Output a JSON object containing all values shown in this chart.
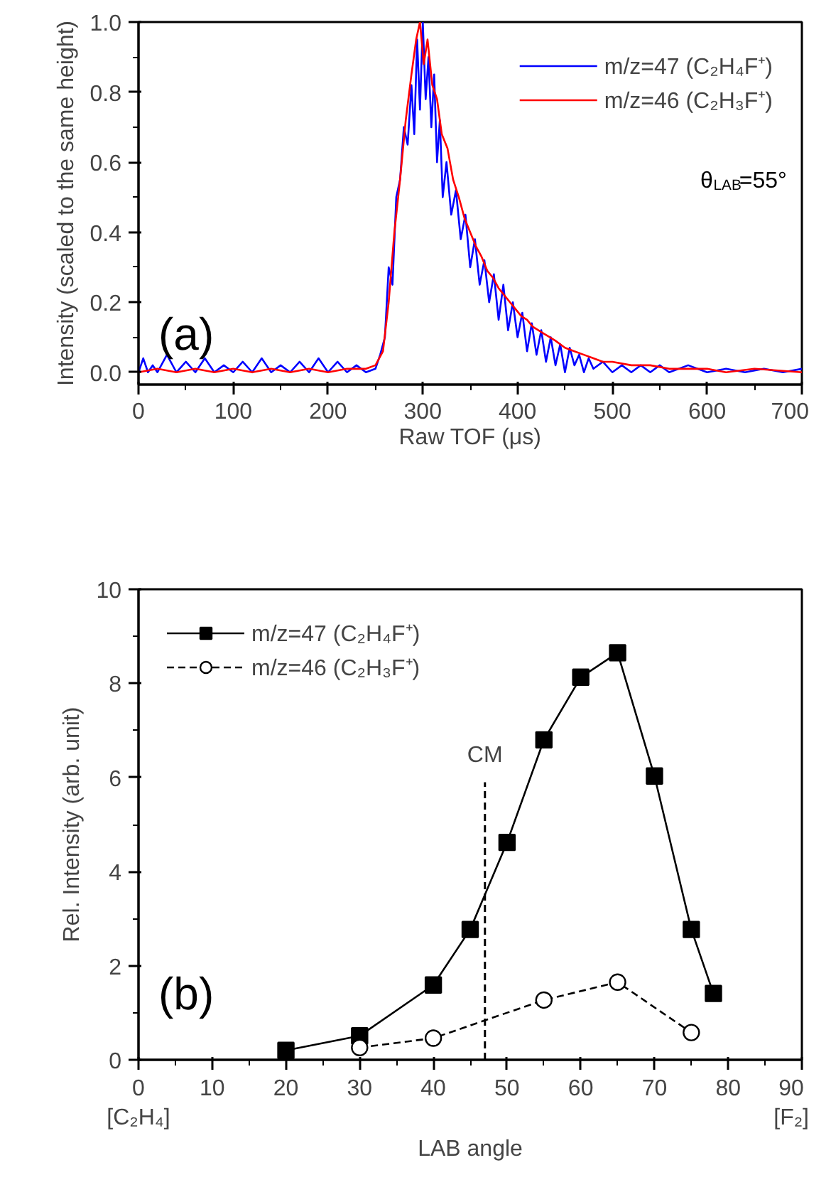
{
  "chart_data": [
    {
      "type": "line",
      "xlabel": "Raw TOF (μs)",
      "ylabel": "Intensity (scaled to the same height)",
      "xlim": [
        0,
        700
      ],
      "ylim": [
        -0.035,
        1.0
      ],
      "xticks": [
        0,
        100,
        200,
        300,
        400,
        500,
        600,
        700
      ],
      "yticks": [
        {
          "value": 0,
          "label": "0.0"
        },
        {
          "value": 0.2,
          "label": "0.2"
        },
        {
          "value": 0.4,
          "label": "0.4"
        },
        {
          "value": 0.6,
          "label": "0.6"
        },
        {
          "value": 0.8,
          "label": "0.8"
        },
        {
          "value": 1.0,
          "label": "1.0"
        }
      ],
      "grid": false,
      "legend": "top right",
      "annotations": [
        "θ$_{LAB}$=55°",
        "(a)"
      ],
      "series": [
        {
          "name": "m/z=47 (C₂H₄F⁺)",
          "color": "#0000ff",
          "x": [
            0,
            5,
            10,
            15,
            20,
            30,
            40,
            50,
            60,
            70,
            80,
            90,
            100,
            110,
            120,
            130,
            140,
            150,
            160,
            170,
            180,
            190,
            200,
            210,
            220,
            230,
            240,
            250,
            255,
            260,
            264,
            268,
            272,
            276,
            280,
            284,
            288,
            291,
            294,
            297,
            300,
            303,
            306,
            309,
            312,
            315,
            318,
            321,
            325,
            330,
            335,
            340,
            345,
            350,
            355,
            360,
            365,
            370,
            375,
            380,
            385,
            390,
            395,
            400,
            405,
            410,
            415,
            420,
            425,
            430,
            435,
            440,
            445,
            450,
            455,
            460,
            465,
            470,
            475,
            480,
            490,
            500,
            510,
            520,
            530,
            540,
            550,
            560,
            580,
            600,
            620,
            640,
            660,
            680,
            700
          ],
          "values": [
            0.0,
            0.04,
            0.0,
            0.02,
            0.0,
            0.05,
            0.0,
            0.03,
            0.0,
            0.04,
            0.0,
            0.02,
            0.0,
            0.03,
            0.0,
            0.04,
            0.0,
            0.02,
            0.0,
            0.03,
            0.0,
            0.04,
            0.0,
            0.03,
            0.0,
            0.02,
            0.0,
            0.01,
            0.05,
            0.1,
            0.3,
            0.25,
            0.5,
            0.55,
            0.7,
            0.65,
            0.82,
            0.68,
            0.95,
            0.75,
            1.0,
            0.78,
            0.9,
            0.7,
            0.85,
            0.6,
            0.72,
            0.5,
            0.6,
            0.45,
            0.52,
            0.38,
            0.45,
            0.3,
            0.38,
            0.25,
            0.32,
            0.2,
            0.28,
            0.15,
            0.25,
            0.12,
            0.2,
            0.1,
            0.17,
            0.06,
            0.14,
            0.05,
            0.12,
            0.03,
            0.1,
            0.02,
            0.08,
            0.0,
            0.07,
            0.02,
            0.05,
            0.0,
            0.04,
            0.01,
            0.03,
            0.0,
            0.02,
            0.0,
            0.02,
            0.0,
            0.02,
            0.0,
            0.02,
            0.0,
            0.01,
            0.0,
            0.01,
            0.0,
            0.01
          ]
        },
        {
          "name": "m/z=46 (C₂H₃F⁺)",
          "color": "#ff0000",
          "x": [
            0,
            20,
            40,
            60,
            80,
            100,
            120,
            140,
            160,
            180,
            200,
            220,
            240,
            250,
            258,
            264,
            270,
            276,
            282,
            288,
            293,
            297,
            301,
            305,
            310,
            315,
            320,
            326,
            332,
            338,
            344,
            350,
            356,
            362,
            368,
            374,
            380,
            386,
            392,
            398,
            404,
            410,
            416,
            422,
            428,
            434,
            440,
            450,
            460,
            470,
            480,
            490,
            500,
            520,
            540,
            560,
            580,
            600,
            620,
            650,
            700
          ],
          "values": [
            0.0,
            0.01,
            0.0,
            0.01,
            0.0,
            0.01,
            0.0,
            0.01,
            0.0,
            0.01,
            0.0,
            0.01,
            0.01,
            0.02,
            0.06,
            0.2,
            0.4,
            0.55,
            0.72,
            0.85,
            0.95,
            1.0,
            0.88,
            0.95,
            0.82,
            0.78,
            0.68,
            0.64,
            0.55,
            0.5,
            0.44,
            0.4,
            0.36,
            0.33,
            0.29,
            0.27,
            0.24,
            0.22,
            0.2,
            0.18,
            0.16,
            0.15,
            0.13,
            0.12,
            0.11,
            0.1,
            0.09,
            0.07,
            0.06,
            0.05,
            0.04,
            0.03,
            0.03,
            0.02,
            0.02,
            0.01,
            0.01,
            0.01,
            0.0,
            0.01,
            0.0
          ]
        }
      ]
    },
    {
      "type": "line",
      "xlabel": "LAB angle",
      "ylabel": "Rel. Intensity (arb. unit)",
      "xlim": [
        0,
        90
      ],
      "ylim": [
        0,
        10
      ],
      "xticks": [
        0,
        10,
        20,
        30,
        40,
        50,
        60,
        70,
        80,
        90
      ],
      "yticks": [
        0,
        2,
        4,
        6,
        8,
        10
      ],
      "grid": false,
      "legend": "top left",
      "annotations": [
        "(b)",
        "[C₂H₄]",
        "[F₂]"
      ],
      "ref_lines": [
        {
          "axis": "x",
          "value": 47,
          "label": "CM",
          "color": "#000000",
          "line_style": "dashed"
        }
      ],
      "series": [
        {
          "name": "m/z=47 (C₂H₄F⁺)",
          "color": "#000000",
          "marker": "square",
          "line_style": "solid",
          "x": [
            20,
            30,
            40,
            45,
            50,
            55,
            60,
            65,
            70,
            75,
            78
          ],
          "values": [
            0.2,
            0.51,
            1.59,
            2.77,
            4.62,
            6.8,
            8.13,
            8.65,
            6.03,
            2.77,
            1.41
          ]
        },
        {
          "name": "m/z=46 (C₂H₃F⁺)",
          "color": "#000000",
          "marker": "circle",
          "line_style": "dashed",
          "x": [
            30,
            40,
            55,
            65,
            75
          ],
          "values": [
            0.26,
            0.46,
            1.27,
            1.65,
            0.58
          ]
        }
      ]
    }
  ]
}
